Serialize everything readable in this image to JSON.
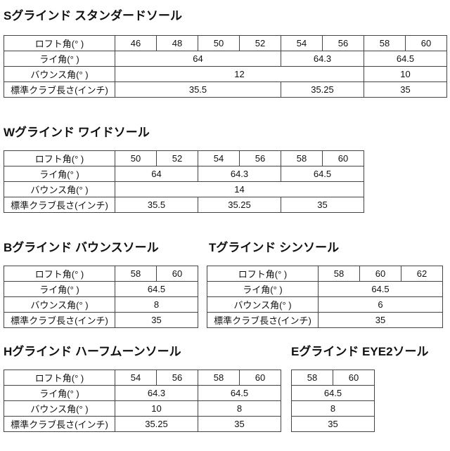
{
  "sections": [
    {
      "id": "s",
      "title": "Sグラインド スタンダードソール",
      "showLabels": true,
      "rows": [
        {
          "label": "ロフト角(°  )",
          "cells": [
            [
              "46",
              1
            ],
            [
              "48",
              1
            ],
            [
              "50",
              1
            ],
            [
              "52",
              1
            ],
            [
              "54",
              1
            ],
            [
              "56",
              1
            ],
            [
              "58",
              1
            ],
            [
              "60",
              1
            ]
          ]
        },
        {
          "label": "ライ角(°  )",
          "cells": [
            [
              "64",
              4
            ],
            [
              "64.3",
              2
            ],
            [
              "64.5",
              2
            ]
          ]
        },
        {
          "label": "バウンス角(°  )",
          "cells": [
            [
              "12",
              6
            ],
            [
              "10",
              2
            ]
          ]
        },
        {
          "label": "標準クラブ長さ(インチ)",
          "cells": [
            [
              "35.5",
              4
            ],
            [
              "35.25",
              2
            ],
            [
              "35",
              2
            ]
          ]
        }
      ]
    },
    {
      "id": "w",
      "title": "Wグラインド ワイドソール",
      "showLabels": true,
      "rows": [
        {
          "label": "ロフト角(°  )",
          "cells": [
            [
              "50",
              1
            ],
            [
              "52",
              1
            ],
            [
              "54",
              1
            ],
            [
              "56",
              1
            ],
            [
              "58",
              1
            ],
            [
              "60",
              1
            ]
          ]
        },
        {
          "label": "ライ角(°  )",
          "cells": [
            [
              "64",
              2
            ],
            [
              "64.3",
              2
            ],
            [
              "64.5",
              2
            ]
          ]
        },
        {
          "label": "バウンス角(°  )",
          "cells": [
            [
              "14",
              6
            ]
          ]
        },
        {
          "label": "標準クラブ長さ(インチ)",
          "cells": [
            [
              "35.5",
              2
            ],
            [
              "35.25",
              2
            ],
            [
              "35",
              2
            ]
          ]
        }
      ]
    },
    {
      "id": "b",
      "title": "Bグラインド バウンスソール",
      "showLabels": true,
      "rows": [
        {
          "label": "ロフト角(°  )",
          "cells": [
            [
              "58",
              1
            ],
            [
              "60",
              1
            ]
          ]
        },
        {
          "label": "ライ角(°  )",
          "cells": [
            [
              "64.5",
              2
            ]
          ]
        },
        {
          "label": "バウンス角(°  )",
          "cells": [
            [
              "8",
              2
            ]
          ]
        },
        {
          "label": "標準クラブ長さ(インチ)",
          "cells": [
            [
              "35",
              2
            ]
          ]
        }
      ]
    },
    {
      "id": "t",
      "title": "Tグラインド シンソール",
      "showLabels": true,
      "rows": [
        {
          "label": "ロフト角(°  )",
          "cells": [
            [
              "58",
              1
            ],
            [
              "60",
              1
            ],
            [
              "62",
              1
            ]
          ]
        },
        {
          "label": "ライ角(°  )",
          "cells": [
            [
              "64.5",
              3
            ]
          ]
        },
        {
          "label": "バウンス角(°  )",
          "cells": [
            [
              "6",
              3
            ]
          ]
        },
        {
          "label": "標準クラブ長さ(インチ)",
          "cells": [
            [
              "35",
              3
            ]
          ]
        }
      ]
    },
    {
      "id": "h",
      "title": "Hグラインド ハーフムーンソール",
      "showLabels": true,
      "rows": [
        {
          "label": "ロフト角(°  )",
          "cells": [
            [
              "54",
              1
            ],
            [
              "56",
              1
            ],
            [
              "58",
              1
            ],
            [
              "60",
              1
            ]
          ]
        },
        {
          "label": "ライ角(°  )",
          "cells": [
            [
              "64.3",
              2
            ],
            [
              "64.5",
              2
            ]
          ]
        },
        {
          "label": "バウンス角(°  )",
          "cells": [
            [
              "10",
              2
            ],
            [
              "8",
              2
            ]
          ]
        },
        {
          "label": "標準クラブ長さ(インチ)",
          "cells": [
            [
              "35.25",
              2
            ],
            [
              "35",
              2
            ]
          ]
        }
      ]
    },
    {
      "id": "e",
      "title": "Eグラインド EYE2ソール",
      "showLabels": false,
      "rows": [
        {
          "cells": [
            [
              "58",
              1
            ],
            [
              "60",
              1
            ]
          ]
        },
        {
          "cells": [
            [
              "64.5",
              2
            ]
          ]
        },
        {
          "cells": [
            [
              "8",
              2
            ]
          ]
        },
        {
          "cells": [
            [
              "35",
              2
            ]
          ]
        }
      ]
    }
  ]
}
